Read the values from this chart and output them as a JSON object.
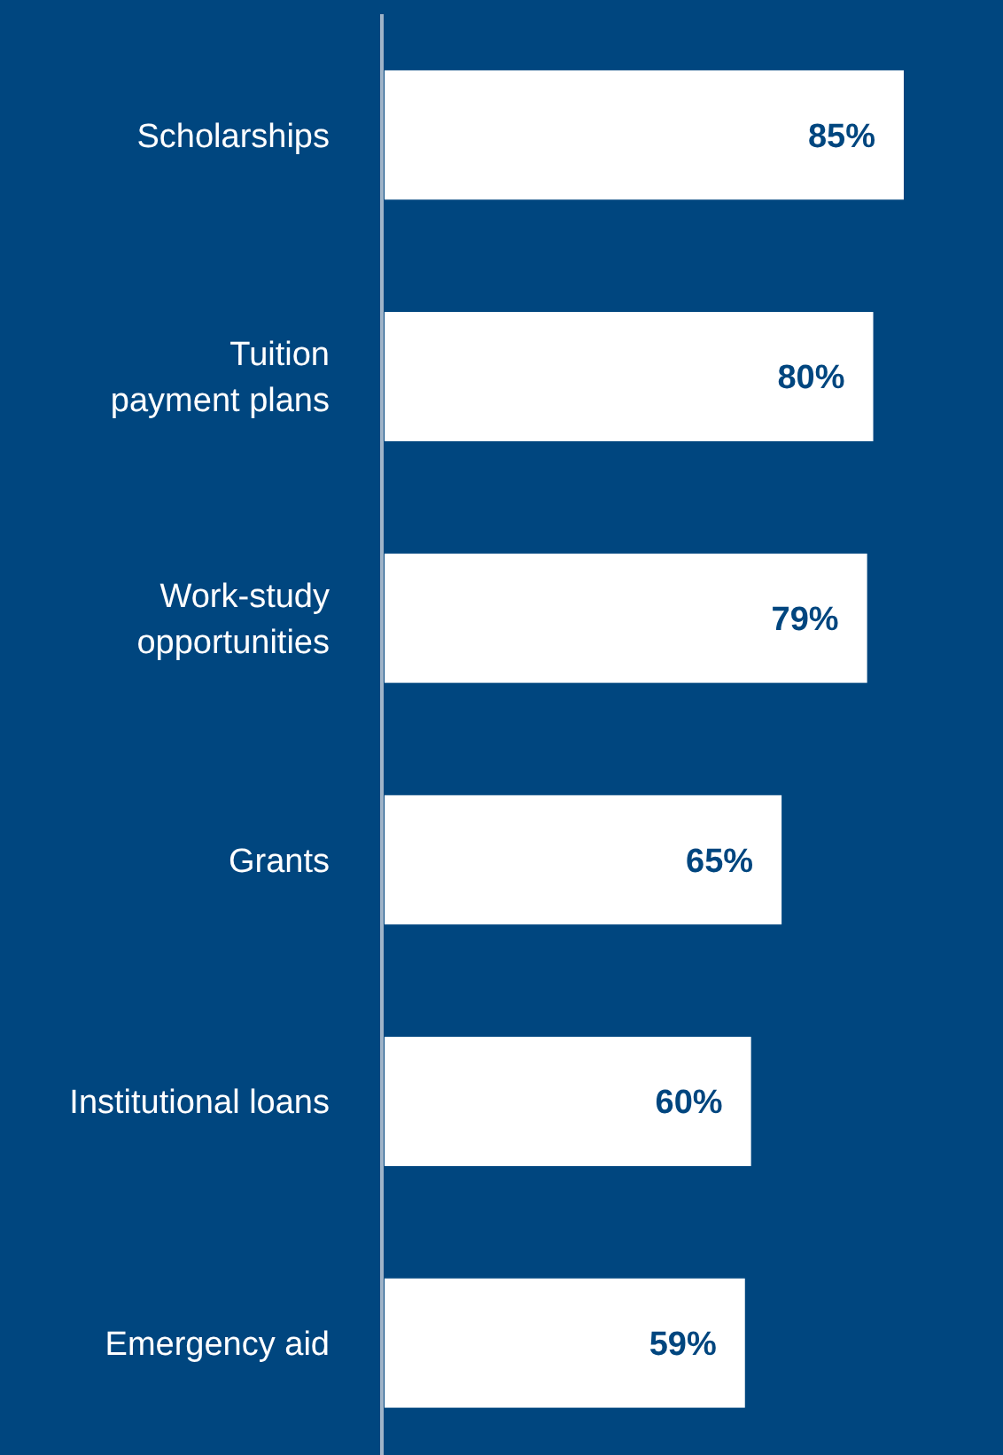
{
  "chart_data": {
    "type": "bar",
    "orientation": "horizontal",
    "categories": [
      "Scholarships",
      "Tuition payment plans",
      "Work-study opportunities",
      "Grants",
      "Institutional loans",
      "Emergency aid"
    ],
    "values": [
      85,
      80,
      79,
      65,
      60,
      59
    ],
    "color": "#ffffff",
    "data_labels": true,
    "value_labels": [
      "85%",
      "80%",
      "79%",
      "65%",
      "60%",
      "59%"
    ]
  }
}
